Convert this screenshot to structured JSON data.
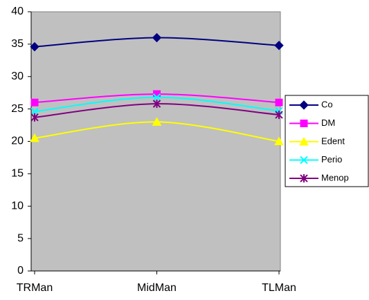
{
  "chart_data": {
    "type": "line",
    "categories": [
      "TRMan",
      "MidMan",
      "TLMan"
    ],
    "series": [
      {
        "name": "Co",
        "color": "#000080",
        "marker": "diamond",
        "values": [
          34.6,
          36,
          34.8
        ]
      },
      {
        "name": "DM",
        "color": "#FF00FF",
        "marker": "square",
        "values": [
          26,
          27.3,
          26
        ]
      },
      {
        "name": "Edent",
        "color": "#FFFF00",
        "marker": "triangle",
        "values": [
          20.5,
          23,
          20
        ]
      },
      {
        "name": "Perio",
        "color": "#00FFFF",
        "marker": "x",
        "values": [
          24.6,
          26.8,
          24.7
        ]
      },
      {
        "name": "Menop",
        "color": "#800080",
        "marker": "asterisk",
        "values": [
          23.7,
          25.8,
          24.1
        ]
      }
    ],
    "ylim": [
      0,
      40
    ],
    "yticks": [
      0,
      5,
      10,
      15,
      20,
      25,
      30,
      35,
      40
    ],
    "grid": false,
    "smooth": true,
    "legend": "right",
    "plot_background": "#C0C0C0"
  }
}
